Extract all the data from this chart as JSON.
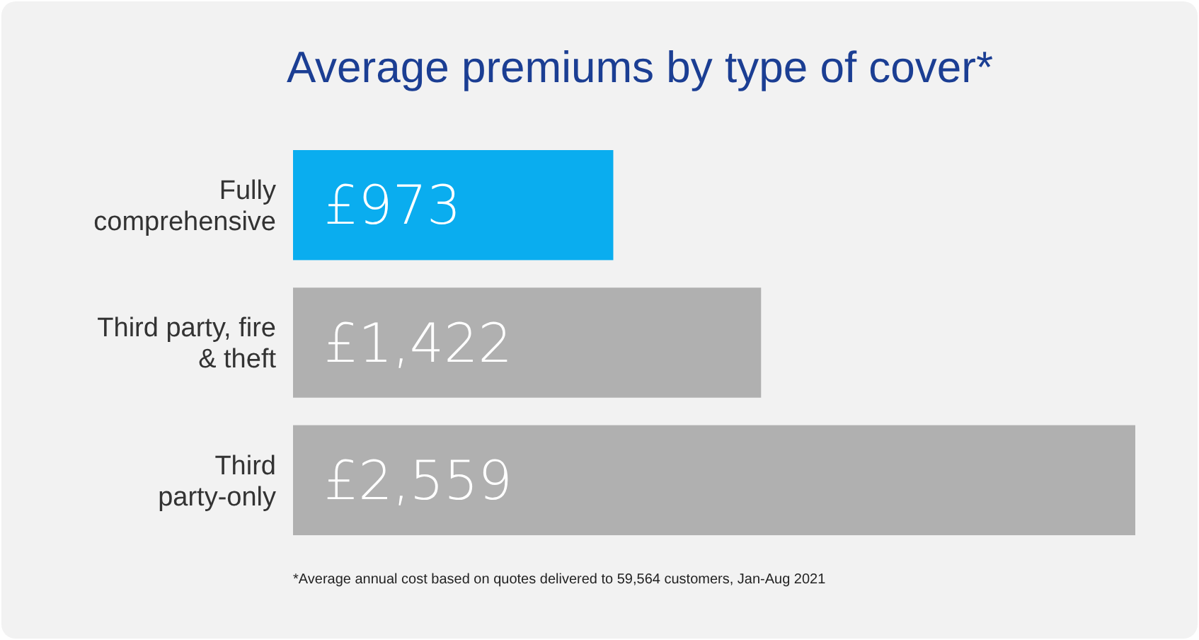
{
  "chart_data": {
    "type": "bar",
    "orientation": "horizontal",
    "title": "Average premiums by type of cover*",
    "categories": [
      "Fully comprehensive",
      "Third party, fire & theft",
      "Third party-only"
    ],
    "values": [
      973,
      1422,
      2559
    ],
    "colors": [
      "#0aadef",
      "#b0b0b0",
      "#b0b0b0"
    ],
    "value_labels": [
      "£973",
      "£1,422",
      "£2,559"
    ],
    "annotations": [
      "*Average annual cost based on quotes delivered to 59,564 customers, Jan-Aug 2021"
    ]
  }
}
